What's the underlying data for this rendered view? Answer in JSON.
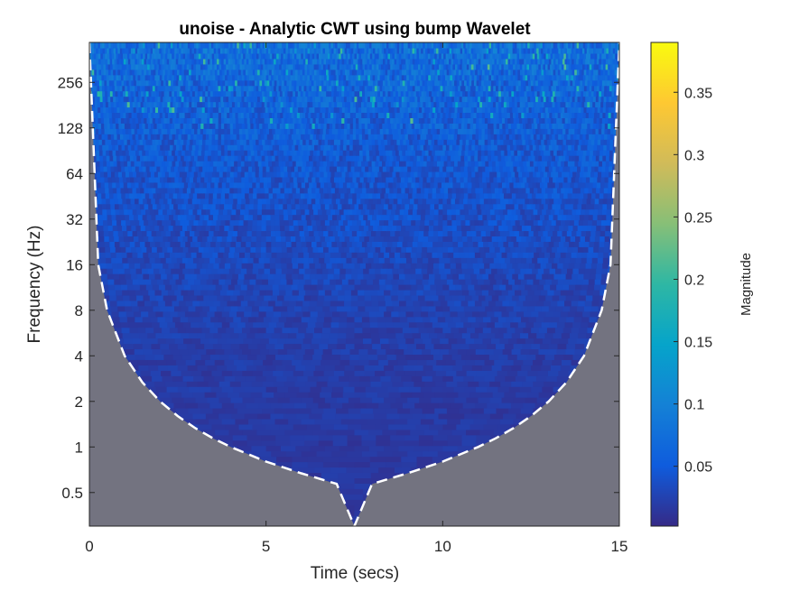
{
  "chart_data": {
    "type": "heatmap",
    "title": "unoise - Analytic CWT using bump Wavelet",
    "xlabel": "Time (secs)",
    "ylabel": "Frequency (Hz)",
    "x_axis": {
      "range": [
        0,
        15
      ],
      "ticks": [
        0,
        5,
        10,
        15
      ],
      "tick_labels": [
        "0",
        "5",
        "10",
        "15"
      ]
    },
    "y_axis": {
      "scale": "log2",
      "range": [
        0.3,
        470
      ],
      "ticks": [
        0.5,
        1,
        2,
        4,
        8,
        16,
        32,
        64,
        128,
        256
      ],
      "tick_labels": [
        "0.5",
        "1",
        "2",
        "4",
        "8",
        "16",
        "32",
        "64",
        "128",
        "256"
      ]
    },
    "colorbar": {
      "label": "Magnitude",
      "colormap": "parula",
      "range": [
        0.002,
        0.39
      ],
      "ticks": [
        0.05,
        0.1,
        0.15,
        0.2,
        0.25,
        0.3,
        0.35
      ],
      "tick_labels": [
        "0.05",
        "0.1",
        "0.15",
        "0.2",
        "0.25",
        "0.3",
        "0.35"
      ]
    },
    "magnitude_profile": {
      "note_frequency_hz": [
        0.3,
        1,
        4,
        16,
        64,
        200,
        470
      ],
      "typical_magnitude": [
        0.015,
        0.016,
        0.02,
        0.03,
        0.045,
        0.06,
        0.075
      ]
    },
    "cone_of_influence": {
      "style": "white-dashed",
      "time_secs": [
        0,
        0.25,
        0.5,
        1,
        1.5,
        2,
        2.5,
        3,
        3.5,
        4,
        5,
        6,
        7,
        7.5,
        8,
        9,
        10,
        11,
        11.5,
        12,
        12.5,
        13,
        13.5,
        14,
        14.5,
        14.75,
        15
      ],
      "frequency_hz": [
        470,
        16,
        8,
        4,
        2.67,
        2,
        1.6,
        1.33,
        1.14,
        1,
        0.8,
        0.67,
        0.57,
        0.3,
        0.57,
        0.67,
        0.8,
        1,
        1.14,
        1.33,
        1.6,
        2,
        2.67,
        4,
        8,
        16,
        470
      ],
      "shade_color": "#737380"
    }
  }
}
